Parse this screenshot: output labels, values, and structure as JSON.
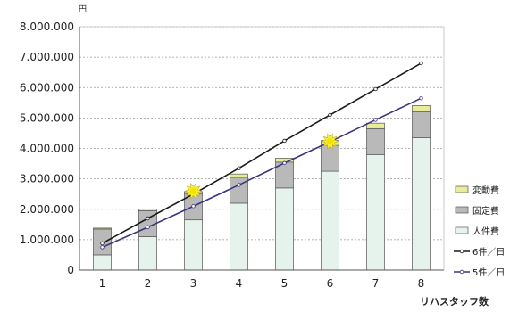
{
  "chart_data": {
    "type": "bar",
    "stacked": true,
    "unit_label": "円",
    "xlabel": "リハスタッフ数",
    "categories": [
      "1",
      "2",
      "3",
      "4",
      "5",
      "6",
      "7",
      "8"
    ],
    "ylim": [
      0,
      8000000
    ],
    "y_ticks": [
      0,
      1000000,
      2000000,
      3000000,
      4000000,
      5000000,
      6000000,
      7000000,
      8000000
    ],
    "y_tick_labels": [
      "0",
      "1.000.000",
      "2.000.000",
      "3.000.000",
      "4.000.000",
      "5.000.000",
      "6.000.000",
      "7.000.000",
      "8.000.000"
    ],
    "grid": true,
    "legend_position": "right",
    "series": [
      {
        "name": "人件費",
        "kind": "bar",
        "color": "#e6f3ec",
        "values": [
          500000,
          1100000,
          1650000,
          2200000,
          2700000,
          3250000,
          3800000,
          4350000
        ]
      },
      {
        "name": "固定費",
        "kind": "bar",
        "color": "#b9b9b9",
        "values": [
          850000,
          850000,
          850000,
          850000,
          850000,
          850000,
          850000,
          850000
        ]
      },
      {
        "name": "変動費",
        "kind": "bar",
        "color": "#e8eb9a",
        "values": [
          30000,
          60000,
          80000,
          110000,
          130000,
          160000,
          180000,
          210000
        ]
      },
      {
        "name": "6件／日",
        "kind": "line",
        "color": "#1a1a1a",
        "values": [
          880000,
          1700000,
          2500000,
          3350000,
          4250000,
          5100000,
          5950000,
          6800000
        ]
      },
      {
        "name": "5件／日",
        "kind": "line",
        "color": "#3a357e",
        "values": [
          750000,
          1410000,
          2100000,
          2800000,
          3520000,
          4220000,
          4940000,
          5650000
        ]
      }
    ],
    "break_even_markers": [
      {
        "category": "3",
        "value": 2600000
      },
      {
        "category": "6",
        "value": 4230000
      }
    ],
    "legend_order": [
      "変動費",
      "固定費",
      "人件費",
      "6件／日",
      "5件／日"
    ]
  }
}
